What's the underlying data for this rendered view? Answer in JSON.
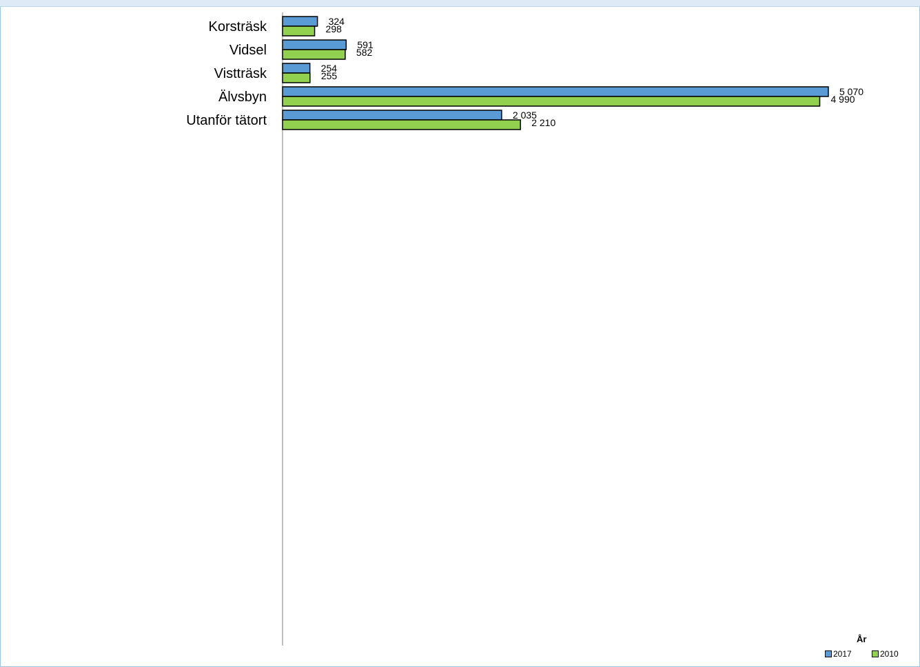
{
  "chart_data": {
    "type": "bar",
    "orientation": "horizontal",
    "categories": [
      "Korsträsk",
      "Vidsel",
      "Vistträsk",
      "Älvsbyn",
      "Utanför tätort"
    ],
    "series": [
      {
        "name": "2017",
        "values": [
          324,
          591,
          254,
          5070,
          2035
        ],
        "labels": [
          "324",
          "591",
          "254",
          "5 070",
          "2 035"
        ],
        "color": "#5b9bd5"
      },
      {
        "name": "2010",
        "values": [
          298,
          582,
          255,
          4990,
          2210
        ],
        "labels": [
          "298",
          "582",
          "255",
          "4 990",
          "2 210"
        ],
        "color": "#92d050"
      }
    ],
    "legend_title": "År",
    "legend_position": "bottom-right",
    "grid": false,
    "xlim": [
      0,
      5100
    ]
  }
}
